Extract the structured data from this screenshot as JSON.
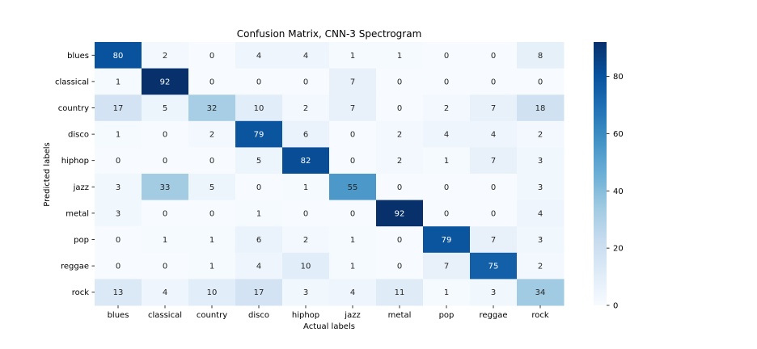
{
  "chart_data": {
    "type": "heatmap",
    "title": "Confusion Matrix, CNN-3 Spectrogram",
    "xlabel": "Actual labels",
    "ylabel": "Predicted labels",
    "x_categories": [
      "blues",
      "classical",
      "country",
      "disco",
      "hiphop",
      "jazz",
      "metal",
      "pop",
      "reggae",
      "rock"
    ],
    "y_categories": [
      "blues",
      "classical",
      "country",
      "disco",
      "hiphop",
      "jazz",
      "metal",
      "pop",
      "reggae",
      "rock"
    ],
    "values": [
      [
        80,
        2,
        0,
        4,
        4,
        1,
        1,
        0,
        0,
        8
      ],
      [
        1,
        92,
        0,
        0,
        0,
        7,
        0,
        0,
        0,
        0
      ],
      [
        17,
        5,
        32,
        10,
        2,
        7,
        0,
        2,
        7,
        18
      ],
      [
        1,
        0,
        2,
        79,
        6,
        0,
        2,
        4,
        4,
        2
      ],
      [
        0,
        0,
        0,
        5,
        82,
        0,
        2,
        1,
        7,
        3
      ],
      [
        3,
        33,
        5,
        0,
        1,
        55,
        0,
        0,
        0,
        3
      ],
      [
        3,
        0,
        0,
        1,
        0,
        0,
        92,
        0,
        0,
        4
      ],
      [
        0,
        1,
        1,
        6,
        2,
        1,
        0,
        79,
        7,
        3
      ],
      [
        0,
        0,
        1,
        4,
        10,
        1,
        0,
        7,
        75,
        2
      ],
      [
        13,
        4,
        10,
        17,
        3,
        4,
        11,
        1,
        3,
        34
      ]
    ],
    "colorbar": {
      "range": [
        0,
        92
      ],
      "ticks": [
        0,
        20,
        40,
        60,
        80
      ],
      "colormap": "Blues"
    }
  }
}
